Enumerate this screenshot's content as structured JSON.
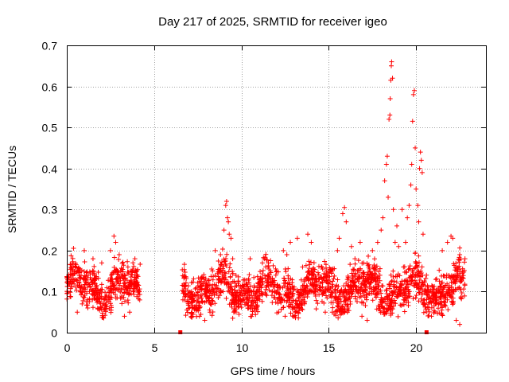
{
  "chart_data": {
    "type": "scatter",
    "title": "Day 217 of 2025, SRMTID for receiver igeo",
    "xlabel": "GPS time / hours",
    "ylabel": "SRMTID / TECUs",
    "xlim": [
      0,
      24
    ],
    "ylim": [
      0,
      0.7
    ],
    "xticks": [
      0,
      5,
      10,
      15,
      20
    ],
    "xtick_labels": [
      "0",
      "5",
      "10",
      "15",
      "20"
    ],
    "yticks": [
      0,
      0.1,
      0.2,
      0.3,
      0.4,
      0.5,
      0.6,
      0.7
    ],
    "ytick_labels": [
      "0",
      "0.1",
      "0.2",
      "0.3",
      "0.4",
      "0.5",
      "0.6",
      "0.7"
    ],
    "grid": true,
    "marker": "plus",
    "color": "#ff0000",
    "series": [
      {
        "name": "SRMTID",
        "segments": [
          {
            "x_start": 0.0,
            "x_end": 4.2,
            "base": 0.11,
            "spread": 0.045
          },
          {
            "x_start": 6.6,
            "x_end": 22.8,
            "base": 0.105,
            "spread": 0.045
          }
        ],
        "points": [
          [
            0.5,
            0.16
          ],
          [
            1.0,
            0.2
          ],
          [
            1.5,
            0.18
          ],
          [
            2.0,
            0.17
          ],
          [
            2.5,
            0.2
          ],
          [
            2.7,
            0.235
          ],
          [
            2.8,
            0.22
          ],
          [
            3.0,
            0.19
          ],
          [
            3.5,
            0.16
          ],
          [
            3.9,
            0.18
          ],
          [
            0.6,
            0.05
          ],
          [
            1.2,
            0.06
          ],
          [
            3.3,
            0.04
          ],
          [
            3.6,
            0.05
          ],
          [
            7.6,
            0.04
          ],
          [
            7.9,
            0.03
          ],
          [
            8.2,
            0.05
          ],
          [
            8.5,
            0.2
          ],
          [
            8.8,
            0.19
          ],
          [
            9.0,
            0.25
          ],
          [
            9.1,
            0.31
          ],
          [
            9.15,
            0.32
          ],
          [
            9.2,
            0.28
          ],
          [
            9.25,
            0.27
          ],
          [
            9.3,
            0.24
          ],
          [
            9.4,
            0.23
          ],
          [
            9.5,
            0.18
          ],
          [
            10.5,
            0.18
          ],
          [
            11.2,
            0.17
          ],
          [
            12.0,
            0.15
          ],
          [
            12.4,
            0.2
          ],
          [
            12.6,
            0.19
          ],
          [
            12.8,
            0.22
          ],
          [
            13.2,
            0.23
          ],
          [
            13.5,
            0.16
          ],
          [
            13.8,
            0.24
          ],
          [
            14.0,
            0.22
          ],
          [
            12.5,
            0.04
          ],
          [
            14.8,
            0.05
          ],
          [
            15.2,
            0.05
          ],
          [
            15.5,
            0.2
          ],
          [
            15.6,
            0.23
          ],
          [
            15.8,
            0.29
          ],
          [
            15.9,
            0.305
          ],
          [
            16.0,
            0.27
          ],
          [
            16.3,
            0.21
          ],
          [
            16.5,
            0.18
          ],
          [
            16.8,
            0.22
          ],
          [
            17.0,
            0.17
          ],
          [
            17.5,
            0.2
          ],
          [
            17.8,
            0.22
          ],
          [
            16.9,
            0.04
          ],
          [
            17.2,
            0.03
          ],
          [
            18.0,
            0.25
          ],
          [
            18.1,
            0.28
          ],
          [
            18.2,
            0.37
          ],
          [
            18.3,
            0.41
          ],
          [
            18.35,
            0.43
          ],
          [
            18.4,
            0.33
          ],
          [
            18.45,
            0.52
          ],
          [
            18.5,
            0.53
          ],
          [
            18.52,
            0.57
          ],
          [
            18.55,
            0.615
          ],
          [
            18.58,
            0.65
          ],
          [
            18.6,
            0.66
          ],
          [
            18.65,
            0.62
          ],
          [
            18.7,
            0.3
          ],
          [
            18.8,
            0.22
          ],
          [
            18.9,
            0.26
          ],
          [
            19.0,
            0.21
          ],
          [
            19.2,
            0.3
          ],
          [
            19.4,
            0.22
          ],
          [
            19.5,
            0.28
          ],
          [
            19.6,
            0.31
          ],
          [
            19.7,
            0.36
          ],
          [
            19.75,
            0.41
          ],
          [
            19.8,
            0.515
          ],
          [
            19.85,
            0.58
          ],
          [
            19.9,
            0.59
          ],
          [
            19.95,
            0.45
          ],
          [
            20.0,
            0.35
          ],
          [
            20.1,
            0.31
          ],
          [
            20.15,
            0.27
          ],
          [
            20.2,
            0.4
          ],
          [
            20.25,
            0.44
          ],
          [
            20.3,
            0.42
          ],
          [
            20.35,
            0.39
          ],
          [
            20.4,
            0.24
          ],
          [
            21.5,
            0.2
          ],
          [
            21.8,
            0.22
          ],
          [
            22.0,
            0.235
          ],
          [
            22.1,
            0.23
          ],
          [
            22.5,
            0.19
          ],
          [
            22.8,
            0.18
          ],
          [
            22.5,
            0.02
          ],
          [
            22.3,
            0.03
          ]
        ],
        "tick_markers": [
          {
            "x": 6.5,
            "y": 0
          },
          {
            "x": 20.6,
            "y": 0
          }
        ]
      }
    ]
  }
}
